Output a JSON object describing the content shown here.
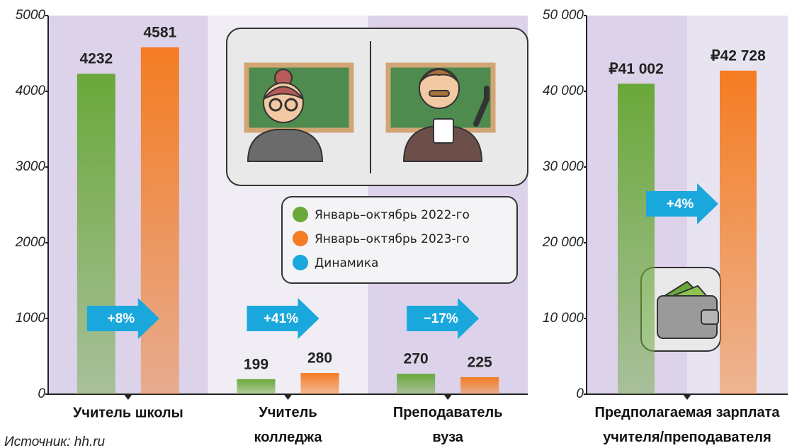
{
  "source": "Источник: hh.ru",
  "chart_data": [
    {
      "type": "bar",
      "categories": [
        "Учитель школы",
        "Учитель\nколледжа",
        "Преподаватель\nвуза"
      ],
      "series": [
        {
          "name": "Январь–октябрь 2022-го",
          "color": "#6aa83a",
          "values": [
            4232,
            199,
            270
          ]
        },
        {
          "name": "Январь–октябрь 2023-го",
          "color": "#f47c22",
          "values": [
            4581,
            280,
            225
          ]
        }
      ],
      "dynamics": {
        "name": "Динамика",
        "color": "#1aa7dc",
        "values": [
          8,
          41,
          -17
        ],
        "value_labels": [
          "+8%",
          "+41%",
          "−17%"
        ]
      },
      "ylim": [
        0,
        5000
      ],
      "yticks": [
        0,
        1000,
        2000,
        3000,
        4000,
        5000
      ],
      "grid": false
    },
    {
      "type": "bar",
      "categories": [
        "Предполагаемая зарплата\nучителя/преподавателя"
      ],
      "series": [
        {
          "color": "#6aa83a",
          "values": [
            41002
          ],
          "value_labels": [
            "₽41 002"
          ]
        },
        {
          "color": "#f47c22",
          "values": [
            42728
          ],
          "value_labels": [
            "₽42 728"
          ]
        }
      ],
      "dynamics": {
        "color": "#1aa7dc",
        "values": [
          4
        ],
        "value_labels": [
          "+4%"
        ]
      },
      "ylim": [
        0,
        50000
      ],
      "yticks": [
        0,
        {
          "value": 10000,
          "label": "10 000"
        },
        {
          "value": 20000,
          "label": "20 000"
        },
        {
          "value": 30000,
          "label": "30 000"
        },
        {
          "value": 40000,
          "label": "40 000"
        },
        {
          "value": 50000,
          "label": "50 000"
        }
      ],
      "grid": false
    }
  ]
}
